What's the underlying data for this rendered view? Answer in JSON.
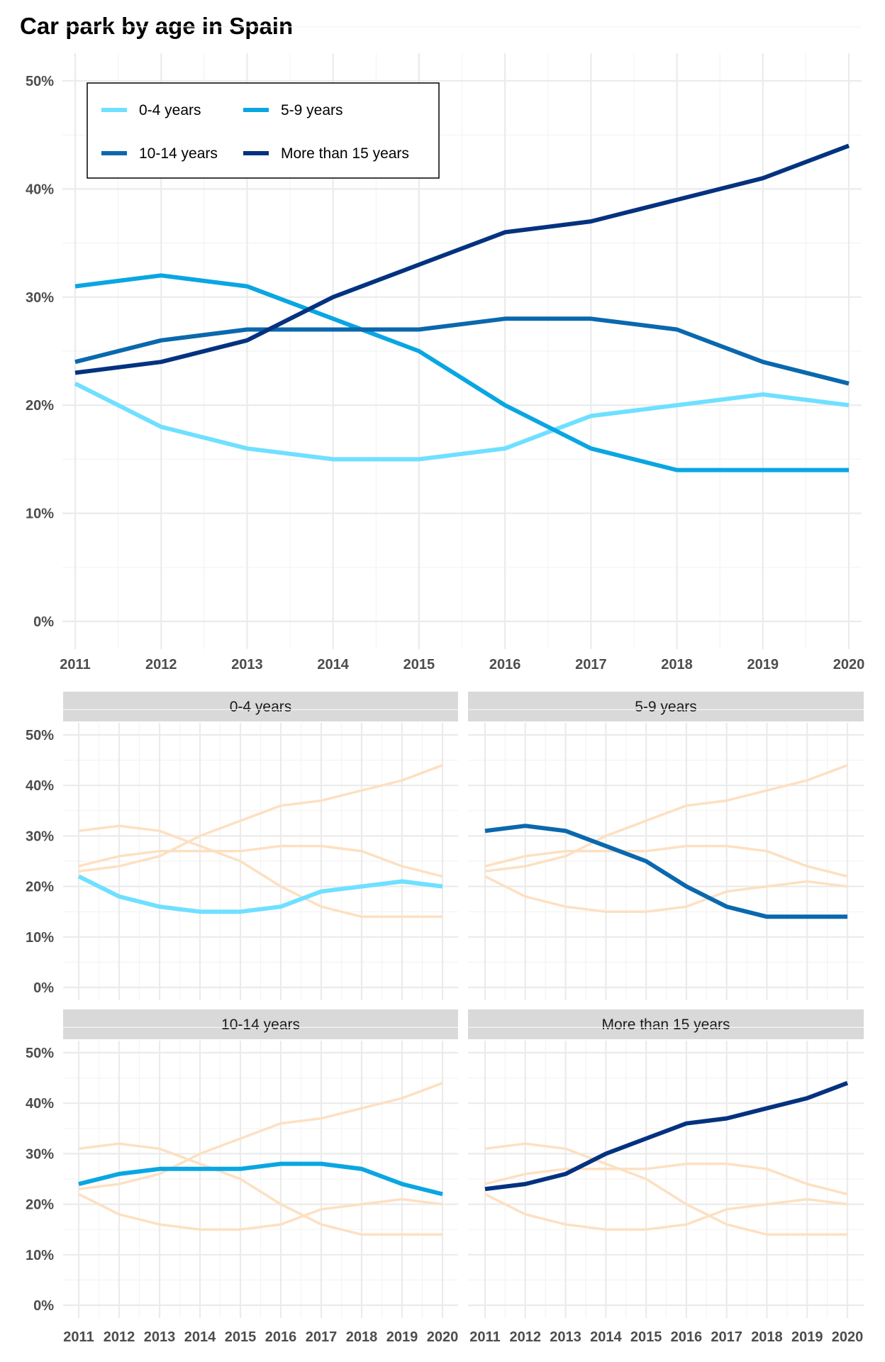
{
  "title": "Car park by age in Spain",
  "chart_data": [
    {
      "type": "line",
      "title": "Car park by age in Spain",
      "x": [
        2011,
        2012,
        2013,
        2014,
        2015,
        2016,
        2017,
        2018,
        2019,
        2020
      ],
      "y_ticks": [
        "0%",
        "10%",
        "20%",
        "30%",
        "40%",
        "50%"
      ],
      "ylim": [
        0,
        50
      ],
      "y_unit": "%",
      "grid": true,
      "legend_position": "top-left",
      "series": [
        {
          "name": "0-4 years",
          "color": "#6fe0ff",
          "values": [
            22,
            18,
            16,
            15,
            15,
            16,
            19,
            20,
            21,
            20
          ]
        },
        {
          "name": "5-9 years",
          "color": "#0aa6e2",
          "values": [
            31,
            32,
            31,
            28,
            25,
            20,
            16,
            14,
            14,
            14
          ]
        },
        {
          "name": "10-14 years",
          "color": "#0a68ad",
          "values": [
            24,
            26,
            27,
            27,
            27,
            28,
            28,
            27,
            24,
            22
          ]
        },
        {
          "name": "More than 15 years",
          "color": "#03327f",
          "values": [
            23,
            24,
            26,
            30,
            33,
            36,
            37,
            39,
            41,
            44
          ]
        }
      ]
    },
    {
      "type": "line",
      "facet_by": "series",
      "background_color": "#fde0c2",
      "facets": [
        {
          "label": "0-4 years",
          "highlight_series": 0,
          "highlight_color": "#6fe0ff"
        },
        {
          "label": "5-9 years",
          "highlight_series": 1,
          "highlight_color": "#0a68ad"
        },
        {
          "label": "10-14 years",
          "highlight_series": 2,
          "highlight_color": "#0aa6e2"
        },
        {
          "label": "More than 15 years",
          "highlight_series": 3,
          "highlight_color": "#03327f"
        }
      ]
    }
  ]
}
